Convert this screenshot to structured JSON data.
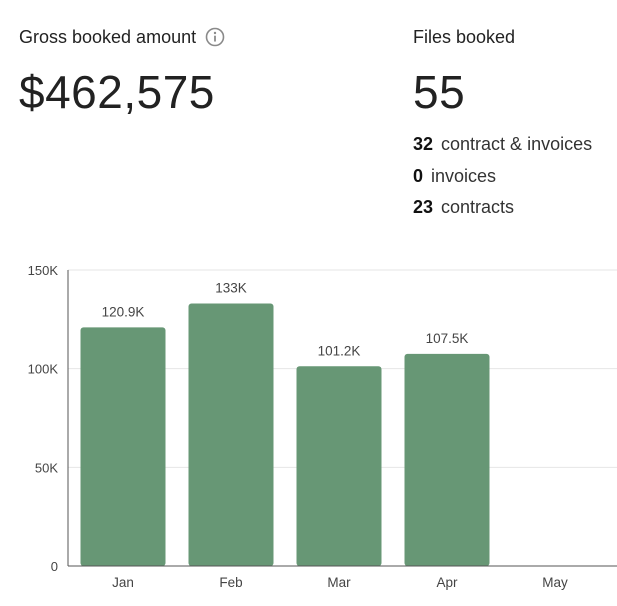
{
  "gross": {
    "label": "Gross booked amount",
    "value": "$462,575",
    "info_icon": "info-icon"
  },
  "files": {
    "label": "Files booked",
    "value": "55",
    "breakdown": [
      {
        "count": "32",
        "label": "contract & invoices"
      },
      {
        "count": "0",
        "label": "invoices"
      },
      {
        "count": "23",
        "label": "contracts"
      }
    ]
  },
  "colors": {
    "bar": "#679775",
    "axis": "#555555",
    "grid": "#e6e6e6"
  },
  "chart_data": {
    "type": "bar",
    "categories": [
      "Jan",
      "Feb",
      "Mar",
      "Apr",
      "May"
    ],
    "values": [
      120900,
      133000,
      101200,
      107500,
      null
    ],
    "data_labels": [
      "120.9K",
      "133K",
      "101.2K",
      "107.5K",
      ""
    ],
    "yticks": [
      0,
      50000,
      100000,
      150000
    ],
    "ytick_labels": [
      "0",
      "50K",
      "100K",
      "150K"
    ],
    "ylim": [
      0,
      150000
    ],
    "grid": true,
    "title": "",
    "xlabel": "",
    "ylabel": ""
  }
}
